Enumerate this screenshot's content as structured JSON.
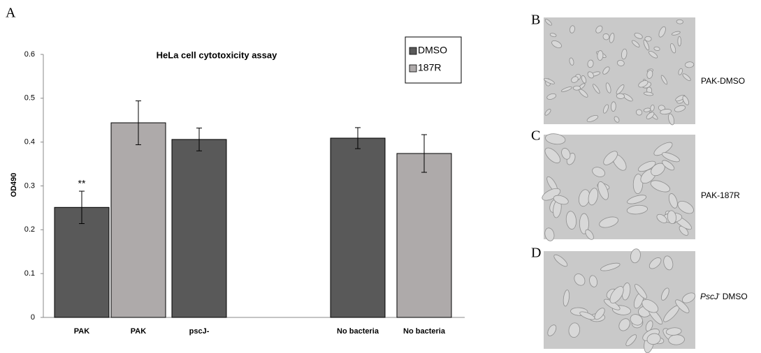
{
  "chart_data": {
    "type": "bar",
    "title": "HeLa cell cytotoxicity assay",
    "y_label": "OD490",
    "panel_label": "A",
    "categories": [
      "PAK",
      "PAK",
      "pscJ-",
      null,
      "No bacteria",
      "No bacteria"
    ],
    "series": [
      {
        "name": "DMSO",
        "color": "#595959",
        "values": [
          0.251,
          null,
          0.406,
          null,
          0.409,
          null
        ],
        "errors": [
          0.037,
          null,
          0.026,
          null,
          0.024,
          null
        ]
      },
      {
        "name": "187R",
        "color": "#aeaaaa",
        "values": [
          null,
          0.444,
          null,
          null,
          null,
          0.374
        ],
        "errors": [
          null,
          0.05,
          null,
          null,
          null,
          0.043
        ]
      }
    ],
    "annotation": "**",
    "ylim": [
      0,
      0.6
    ],
    "yticks": [
      0,
      0.1,
      0.2,
      0.3,
      0.4,
      0.5,
      0.6
    ],
    "grid": false,
    "legend": "upper right"
  },
  "images": [
    {
      "label": "B",
      "caption": "PAK-DMSO"
    },
    {
      "label": "C",
      "caption": "PAK-187R"
    },
    {
      "label": "D",
      "caption_italic": "PscJ",
      "caption_sup": "-",
      "caption_rest": "DMSO"
    }
  ]
}
